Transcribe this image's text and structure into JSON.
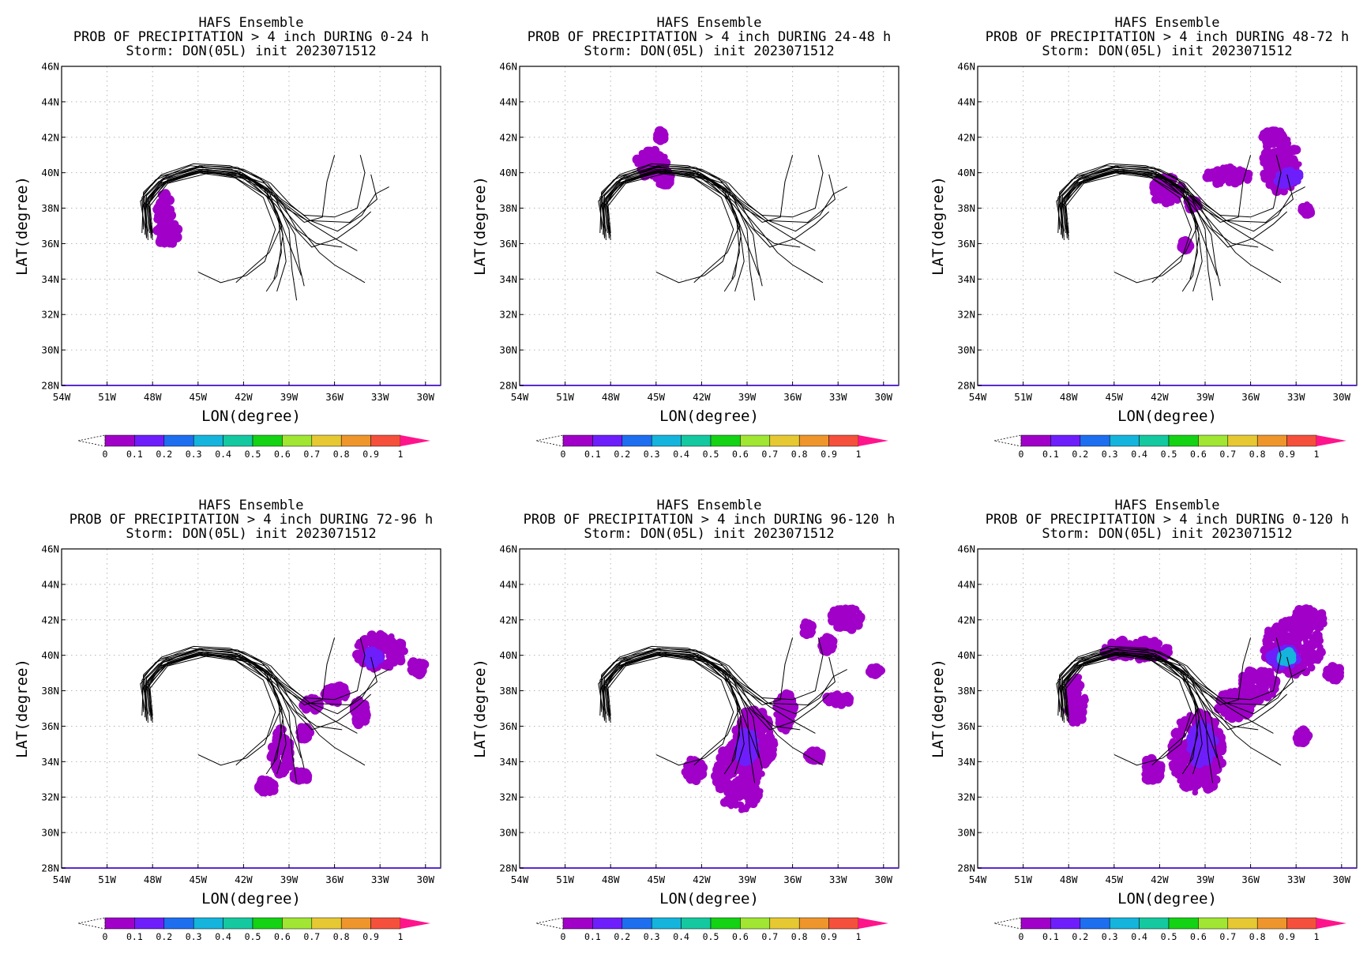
{
  "figure_title": "HAFS Ensemble",
  "chart_data": [
    {
      "type": "heatmap",
      "title": "HAFS Ensemble",
      "subtitle": "PROB OF PRECIPITATION > 4 inch DURING  0-24 h",
      "storm_line": "Storm: DON(05L) init 2023071512",
      "xlabel": "LON(degree)",
      "ylabel": "LAT(degree)",
      "xlim": [
        -54,
        -29
      ],
      "ylim": [
        28,
        46
      ],
      "xticks": [
        "54W",
        "51W",
        "48W",
        "45W",
        "42W",
        "39W",
        "36W",
        "33W",
        "30W"
      ],
      "yticks": [
        "28N",
        "30N",
        "32N",
        "34N",
        "36N",
        "38N",
        "40N",
        "42N",
        "44N",
        "46N"
      ],
      "grid": true,
      "regions": [
        {
          "lon": -47.2,
          "lat": 37.6,
          "rlon": 0.5,
          "rlat": 1.3,
          "prob": 0.05
        },
        {
          "lon": -47.0,
          "lat": 36.6,
          "rlon": 0.7,
          "rlat": 0.7,
          "prob": 0.05
        }
      ]
    },
    {
      "type": "heatmap",
      "title": "HAFS Ensemble",
      "subtitle": "PROB OF PRECIPITATION > 4 inch DURING 24-48 h",
      "storm_line": "Storm: DON(05L) init 2023071512",
      "xlabel": "LON(degree)",
      "ylabel": "LAT(degree)",
      "xlim": [
        -54,
        -29
      ],
      "ylim": [
        28,
        46
      ],
      "xticks": [
        "54W",
        "51W",
        "48W",
        "45W",
        "42W",
        "39W",
        "36W",
        "33W",
        "30W"
      ],
      "yticks": [
        "28N",
        "30N",
        "32N",
        "34N",
        "36N",
        "38N",
        "40N",
        "42N",
        "44N",
        "46N"
      ],
      "grid": true,
      "regions": [
        {
          "lon": -45.3,
          "lat": 40.5,
          "rlon": 1.0,
          "rlat": 0.8,
          "prob": 0.05
        },
        {
          "lon": -44.7,
          "lat": 42.1,
          "rlon": 0.3,
          "rlat": 0.3,
          "prob": 0.05
        },
        {
          "lon": -44.5,
          "lat": 39.7,
          "rlon": 0.5,
          "rlat": 0.5,
          "prob": 0.05
        }
      ]
    },
    {
      "type": "heatmap",
      "title": "HAFS Ensemble",
      "subtitle": "PROB OF PRECIPITATION > 4 inch DURING 48-72 h",
      "storm_line": "Storm: DON(05L) init 2023071512",
      "xlabel": "LON(degree)",
      "ylabel": "LAT(degree)",
      "xlim": [
        -54,
        -29
      ],
      "ylim": [
        28,
        46
      ],
      "xticks": [
        "54W",
        "51W",
        "48W",
        "45W",
        "42W",
        "39W",
        "36W",
        "33W",
        "30W"
      ],
      "yticks": [
        "28N",
        "30N",
        "32N",
        "34N",
        "36N",
        "38N",
        "40N",
        "42N",
        "44N",
        "46N"
      ],
      "grid": true,
      "regions": [
        {
          "lon": -34.0,
          "lat": 40.5,
          "rlon": 1.2,
          "rlat": 1.6,
          "prob": 0.05
        },
        {
          "lon": -34.5,
          "lat": 42.0,
          "rlon": 0.8,
          "rlat": 0.4,
          "prob": 0.05
        },
        {
          "lon": -33.5,
          "lat": 39.7,
          "rlon": 0.8,
          "rlat": 0.4,
          "prob": 0.15
        },
        {
          "lon": -37.5,
          "lat": 39.8,
          "rlon": 1.5,
          "rlat": 0.5,
          "prob": 0.05
        },
        {
          "lon": -41.5,
          "lat": 39.0,
          "rlon": 1.0,
          "rlat": 0.8,
          "prob": 0.05
        },
        {
          "lon": -39.8,
          "lat": 38.2,
          "rlon": 0.4,
          "rlat": 0.3,
          "prob": 0.05
        },
        {
          "lon": -40.3,
          "lat": 35.9,
          "rlon": 0.3,
          "rlat": 0.3,
          "prob": 0.05
        },
        {
          "lon": -32.3,
          "lat": 37.9,
          "rlon": 0.3,
          "rlat": 0.3,
          "prob": 0.05
        }
      ]
    },
    {
      "type": "heatmap",
      "title": "HAFS Ensemble",
      "subtitle": "PROB OF PRECIPITATION > 4 inch DURING 72-96 h",
      "storm_line": "Storm: DON(05L) init 2023071512",
      "xlabel": "LON(degree)",
      "ylabel": "LAT(degree)",
      "xlim": [
        -54,
        -29
      ],
      "ylim": [
        28,
        46
      ],
      "xticks": [
        "54W",
        "51W",
        "48W",
        "45W",
        "42W",
        "39W",
        "36W",
        "33W",
        "30W"
      ],
      "yticks": [
        "28N",
        "30N",
        "32N",
        "34N",
        "36N",
        "38N",
        "40N",
        "42N",
        "44N",
        "46N"
      ],
      "grid": true,
      "regions": [
        {
          "lon": -33.0,
          "lat": 40.2,
          "rlon": 1.6,
          "rlat": 1.0,
          "prob": 0.05
        },
        {
          "lon": -33.5,
          "lat": 39.9,
          "rlon": 0.5,
          "rlat": 0.4,
          "prob": 0.12
        },
        {
          "lon": -30.5,
          "lat": 39.3,
          "rlon": 0.5,
          "rlat": 0.4,
          "prob": 0.05
        },
        {
          "lon": -36.0,
          "lat": 37.8,
          "rlon": 0.8,
          "rlat": 0.5,
          "prob": 0.05
        },
        {
          "lon": -37.5,
          "lat": 37.2,
          "rlon": 0.6,
          "rlat": 0.4,
          "prob": 0.05
        },
        {
          "lon": -34.3,
          "lat": 36.8,
          "rlon": 0.5,
          "rlat": 0.7,
          "prob": 0.05
        },
        {
          "lon": -39.5,
          "lat": 34.6,
          "rlon": 0.7,
          "rlat": 1.3,
          "prob": 0.05
        },
        {
          "lon": -38.0,
          "lat": 35.6,
          "rlon": 0.4,
          "rlat": 0.4,
          "prob": 0.05
        },
        {
          "lon": -40.5,
          "lat": 32.6,
          "rlon": 0.6,
          "rlat": 0.4,
          "prob": 0.05
        },
        {
          "lon": -38.2,
          "lat": 33.2,
          "rlon": 0.5,
          "rlat": 0.3,
          "prob": 0.05
        }
      ]
    },
    {
      "type": "heatmap",
      "title": "HAFS Ensemble",
      "subtitle": "PROB OF PRECIPITATION > 4 inch DURING 96-120 h",
      "storm_line": "Storm: DON(05L) init 2023071512",
      "xlabel": "LON(degree)",
      "ylabel": "LAT(degree)",
      "xlim": [
        -54,
        -29
      ],
      "ylim": [
        28,
        46
      ],
      "xticks": [
        "54W",
        "51W",
        "48W",
        "45W",
        "42W",
        "39W",
        "36W",
        "33W",
        "30W"
      ],
      "yticks": [
        "28N",
        "30N",
        "32N",
        "34N",
        "36N",
        "38N",
        "40N",
        "42N",
        "44N",
        "46N"
      ],
      "grid": true,
      "regions": [
        {
          "lon": -39.5,
          "lat": 33.2,
          "rlon": 1.6,
          "rlat": 2.0,
          "prob": 0.05
        },
        {
          "lon": -38.5,
          "lat": 35.2,
          "rlon": 1.3,
          "rlat": 1.8,
          "prob": 0.05
        },
        {
          "lon": -39.0,
          "lat": 34.8,
          "rlon": 0.6,
          "rlat": 0.9,
          "prob": 0.12
        },
        {
          "lon": -36.5,
          "lat": 36.8,
          "rlon": 0.6,
          "rlat": 1.1,
          "prob": 0.05
        },
        {
          "lon": -42.5,
          "lat": 33.5,
          "rlon": 0.6,
          "rlat": 0.7,
          "prob": 0.05
        },
        {
          "lon": -32.5,
          "lat": 42.1,
          "rlon": 1.0,
          "rlat": 0.7,
          "prob": 0.05
        },
        {
          "lon": -33.7,
          "lat": 40.6,
          "rlon": 0.4,
          "rlat": 0.4,
          "prob": 0.05
        },
        {
          "lon": -35.0,
          "lat": 41.5,
          "rlon": 0.3,
          "rlat": 0.4,
          "prob": 0.05
        },
        {
          "lon": -33.0,
          "lat": 37.5,
          "rlon": 0.8,
          "rlat": 0.3,
          "prob": 0.05
        },
        {
          "lon": -34.5,
          "lat": 34.3,
          "rlon": 0.5,
          "rlat": 0.3,
          "prob": 0.05
        },
        {
          "lon": -30.5,
          "lat": 39.1,
          "rlon": 0.4,
          "rlat": 0.2,
          "prob": 0.05
        }
      ]
    },
    {
      "type": "heatmap",
      "title": "HAFS Ensemble",
      "subtitle": "PROB OF PRECIPITATION > 4 inch DURING 0-120 h",
      "storm_line": "Storm: DON(05L) init 2023071512",
      "xlabel": "LON(degree)",
      "ylabel": "LAT(degree)",
      "xlim": [
        -54,
        -29
      ],
      "ylim": [
        28,
        46
      ],
      "xticks": [
        "54W",
        "51W",
        "48W",
        "45W",
        "42W",
        "39W",
        "36W",
        "33W",
        "30W"
      ],
      "yticks": [
        "28N",
        "30N",
        "32N",
        "34N",
        "36N",
        "38N",
        "40N",
        "42N",
        "44N",
        "46N"
      ],
      "grid": true,
      "regions": [
        {
          "lon": -47.5,
          "lat": 37.5,
          "rlon": 0.6,
          "rlat": 1.4,
          "prob": 0.05
        },
        {
          "lon": -43.5,
          "lat": 40.3,
          "rlon": 2.2,
          "rlat": 0.6,
          "prob": 0.05
        },
        {
          "lon": -33.2,
          "lat": 40.5,
          "rlon": 2.0,
          "rlat": 1.6,
          "prob": 0.05
        },
        {
          "lon": -33.8,
          "lat": 39.9,
          "rlon": 0.9,
          "rlat": 0.6,
          "prob": 0.18
        },
        {
          "lon": -33.6,
          "lat": 39.9,
          "rlon": 0.4,
          "rlat": 0.3,
          "prob": 0.3
        },
        {
          "lon": -32.2,
          "lat": 42.0,
          "rlon": 1.1,
          "rlat": 0.7,
          "prob": 0.05
        },
        {
          "lon": -39.5,
          "lat": 34.5,
          "rlon": 1.8,
          "rlat": 2.3,
          "prob": 0.05
        },
        {
          "lon": -39.2,
          "lat": 35.0,
          "rlon": 0.8,
          "rlat": 1.2,
          "prob": 0.12
        },
        {
          "lon": -37.0,
          "lat": 37.2,
          "rlon": 1.2,
          "rlat": 0.8,
          "prob": 0.07
        },
        {
          "lon": -35.5,
          "lat": 38.3,
          "rlon": 1.3,
          "rlat": 0.9,
          "prob": 0.05
        },
        {
          "lon": -42.5,
          "lat": 33.5,
          "rlon": 0.6,
          "rlat": 0.7,
          "prob": 0.05
        },
        {
          "lon": -30.5,
          "lat": 39.0,
          "rlon": 0.5,
          "rlat": 0.4,
          "prob": 0.05
        },
        {
          "lon": -32.5,
          "lat": 35.4,
          "rlon": 0.5,
          "rlat": 0.4,
          "prob": 0.05
        }
      ]
    }
  ],
  "tracks": [
    [
      [
        -48.3,
        36.4
      ],
      [
        -48.5,
        38.0
      ],
      [
        -47.5,
        39.3
      ],
      [
        -45.0,
        40.0
      ],
      [
        -42.5,
        39.7
      ],
      [
        -40.5,
        38.7
      ],
      [
        -39.5,
        37.0
      ],
      [
        -39.2,
        35.0
      ],
      [
        -39.8,
        33.3
      ]
    ],
    [
      [
        -48.0,
        36.2
      ],
      [
        -48.3,
        38.5
      ],
      [
        -47.0,
        39.6
      ],
      [
        -44.5,
        40.2
      ],
      [
        -42.0,
        39.9
      ],
      [
        -40.0,
        38.8
      ],
      [
        -39.0,
        36.8
      ],
      [
        -38.8,
        34.5
      ],
      [
        -38.5,
        32.8
      ]
    ],
    [
      [
        -48.6,
        36.8
      ],
      [
        -48.7,
        38.6
      ],
      [
        -47.8,
        39.6
      ],
      [
        -45.5,
        40.4
      ],
      [
        -42.5,
        40.1
      ],
      [
        -40.5,
        39.0
      ],
      [
        -39.7,
        37.5
      ],
      [
        -39.5,
        35.5
      ],
      [
        -40.0,
        34.0
      ]
    ],
    [
      [
        -48.2,
        36.6
      ],
      [
        -48.4,
        38.3
      ],
      [
        -47.2,
        39.5
      ],
      [
        -44.8,
        40.1
      ],
      [
        -42.2,
        39.8
      ],
      [
        -40.2,
        38.5
      ],
      [
        -39.4,
        36.5
      ],
      [
        -39.8,
        34.2
      ],
      [
        -40.5,
        33.3
      ]
    ],
    [
      [
        -48.4,
        36.3
      ],
      [
        -48.6,
        38.8
      ],
      [
        -47.5,
        39.8
      ],
      [
        -45.2,
        40.3
      ],
      [
        -42.8,
        40.2
      ],
      [
        -40.8,
        39.3
      ],
      [
        -39.8,
        37.8
      ],
      [
        -39.0,
        36.0
      ],
      [
        -38.2,
        34.2
      ]
    ],
    [
      [
        -48.1,
        36.5
      ],
      [
        -48.2,
        38.1
      ],
      [
        -47.0,
        39.4
      ],
      [
        -44.2,
        40.0
      ],
      [
        -41.5,
        39.6
      ],
      [
        -39.8,
        38.3
      ],
      [
        -38.6,
        36.5
      ],
      [
        -38.3,
        34.7
      ],
      [
        -38.0,
        33.6
      ]
    ],
    [
      [
        -48.5,
        36.9
      ],
      [
        -48.8,
        38.4
      ],
      [
        -47.6,
        39.5
      ],
      [
        -44.9,
        40.4
      ],
      [
        -42.4,
        40.3
      ],
      [
        -40.4,
        39.4
      ],
      [
        -39.4,
        38.2
      ],
      [
        -38.5,
        36.8
      ],
      [
        -37.2,
        36.0
      ],
      [
        -35.5,
        35.8
      ]
    ],
    [
      [
        -48.3,
        36.2
      ],
      [
        -48.5,
        38.7
      ],
      [
        -47.3,
        39.7
      ],
      [
        -45.0,
        40.2
      ],
      [
        -42.6,
        40.0
      ],
      [
        -40.6,
        39.2
      ],
      [
        -39.2,
        38.0
      ],
      [
        -37.8,
        37.3
      ],
      [
        -35.0,
        37.2
      ],
      [
        -33.2,
        38.5
      ],
      [
        -33.6,
        39.9
      ]
    ],
    [
      [
        -48.0,
        36.4
      ],
      [
        -48.3,
        38.2
      ],
      [
        -47.1,
        39.5
      ],
      [
        -44.6,
        40.1
      ],
      [
        -42.3,
        39.9
      ],
      [
        -40.6,
        39.4
      ],
      [
        -39.5,
        38.5
      ],
      [
        -38.0,
        37.6
      ],
      [
        -36.0,
        37.5
      ],
      [
        -34.5,
        38.0
      ],
      [
        -34.0,
        40.0
      ],
      [
        -34.3,
        41.0
      ]
    ],
    [
      [
        -48.7,
        36.6
      ],
      [
        -48.6,
        38.9
      ],
      [
        -47.4,
        39.9
      ],
      [
        -45.3,
        40.5
      ],
      [
        -42.9,
        40.4
      ],
      [
        -40.9,
        39.7
      ],
      [
        -39.8,
        38.6
      ],
      [
        -38.6,
        37.8
      ],
      [
        -37.5,
        37.1
      ],
      [
        -36.0,
        36.3
      ],
      [
        -34.5,
        35.6
      ]
    ],
    [
      [
        -48.2,
        36.8
      ],
      [
        -48.4,
        38.5
      ],
      [
        -47.3,
        39.6
      ],
      [
        -44.7,
        40.2
      ],
      [
        -42.1,
        40.0
      ],
      [
        -40.4,
        39.1
      ],
      [
        -39.3,
        37.9
      ],
      [
        -38.0,
        36.6
      ],
      [
        -37.0,
        35.5
      ],
      [
        -36.0,
        34.8
      ],
      [
        -34.0,
        33.8
      ]
    ],
    [
      [
        -48.4,
        36.4
      ],
      [
        -48.5,
        38.3
      ],
      [
        -47.5,
        39.4
      ],
      [
        -45.1,
        40.1
      ],
      [
        -42.7,
        39.8
      ],
      [
        -40.7,
        38.6
      ],
      [
        -39.9,
        36.8
      ],
      [
        -40.6,
        35.0
      ],
      [
        -41.8,
        34.2
      ],
      [
        -43.5,
        33.8
      ],
      [
        -45.0,
        34.4
      ]
    ],
    [
      [
        -48.1,
        36.3
      ],
      [
        -48.3,
        38.6
      ],
      [
        -47.2,
        39.7
      ],
      [
        -44.9,
        40.3
      ],
      [
        -42.3,
        40.1
      ],
      [
        -40.3,
        38.9
      ],
      [
        -39.5,
        37.0
      ],
      [
        -40.3,
        35.5
      ],
      [
        -41.5,
        34.6
      ],
      [
        -42.5,
        33.8
      ]
    ],
    [
      [
        -48.3,
        36.7
      ],
      [
        -48.6,
        38.2
      ],
      [
        -47.4,
        39.4
      ],
      [
        -45.0,
        40.0
      ],
      [
        -42.6,
        39.9
      ],
      [
        -40.7,
        39.1
      ],
      [
        -39.6,
        38.4
      ],
      [
        -38.0,
        37.2
      ],
      [
        -36.8,
        37.5
      ],
      [
        -36.5,
        39.5
      ],
      [
        -36.0,
        41.0
      ]
    ],
    [
      [
        -48.5,
        36.5
      ],
      [
        -48.4,
        38.7
      ],
      [
        -47.1,
        39.8
      ],
      [
        -44.6,
        40.4
      ],
      [
        -42.0,
        40.2
      ],
      [
        -40.2,
        39.4
      ],
      [
        -38.9,
        38.2
      ],
      [
        -37.6,
        37.3
      ],
      [
        -35.8,
        36.7
      ],
      [
        -34.2,
        37.6
      ],
      [
        -33.3,
        38.8
      ],
      [
        -32.4,
        39.2
      ]
    ],
    [
      [
        -48.0,
        36.6
      ],
      [
        -48.2,
        38.4
      ],
      [
        -47.0,
        39.5
      ],
      [
        -44.4,
        40.1
      ],
      [
        -41.8,
        39.7
      ],
      [
        -39.9,
        38.2
      ],
      [
        -38.8,
        37.0
      ],
      [
        -37.5,
        35.8
      ],
      [
        -35.8,
        36.3
      ],
      [
        -34.5,
        37.1
      ],
      [
        -33.6,
        37.8
      ]
    ]
  ],
  "colorbar": {
    "labels": [
      "0",
      "0.1",
      "0.2",
      "0.3",
      "0.4",
      "0.5",
      "0.6",
      "0.7",
      "0.8",
      "0.9",
      "1"
    ],
    "colors": [
      "#a000c8",
      "#6e1efa",
      "#1e6ef0",
      "#14b4dc",
      "#14c8a0",
      "#14d214",
      "#a0e632",
      "#e6c832",
      "#ee962c",
      "#f5503c"
    ],
    "low_end_color": "#ffffff",
    "high_end_color": "#ff148c"
  }
}
